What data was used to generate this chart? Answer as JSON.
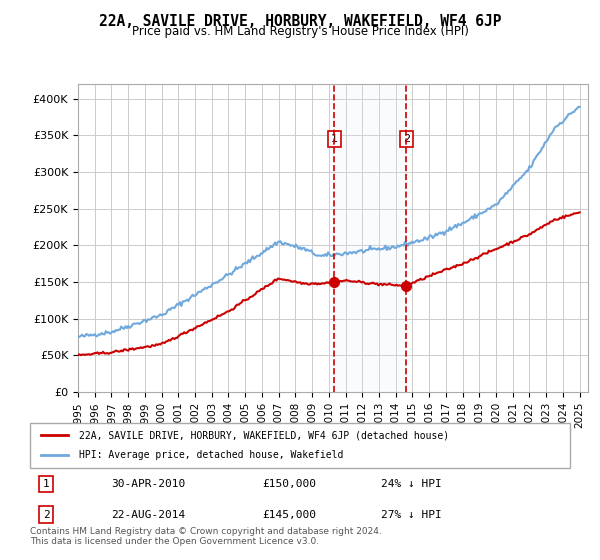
{
  "title": "22A, SAVILE DRIVE, HORBURY, WAKEFIELD, WF4 6JP",
  "subtitle": "Price paid vs. HM Land Registry's House Price Index (HPI)",
  "ylabel_ticks": [
    "£0",
    "£50K",
    "£100K",
    "£150K",
    "£200K",
    "£250K",
    "£300K",
    "£350K",
    "£400K"
  ],
  "ytick_values": [
    0,
    50000,
    100000,
    150000,
    200000,
    250000,
    300000,
    350000,
    400000
  ],
  "ylim": [
    0,
    420000
  ],
  "xlim_start": 1995.0,
  "xlim_end": 2025.5,
  "hpi_color": "#6fa8dc",
  "price_color": "#cc0000",
  "bg_color": "#ffffff",
  "grid_color": "#cccccc",
  "marker1_x": 2010.33,
  "marker2_x": 2014.64,
  "marker1_y": 150000,
  "marker2_y": 145000,
  "shade_color": "#dce9f7",
  "legend_label1": "22A, SAVILE DRIVE, HORBURY, WAKEFIELD, WF4 6JP (detached house)",
  "legend_label2": "HPI: Average price, detached house, Wakefield",
  "annotation1_num": "1",
  "annotation2_num": "2",
  "table_row1": [
    "1",
    "30-APR-2010",
    "£150,000",
    "24% ↓ HPI"
  ],
  "table_row2": [
    "2",
    "22-AUG-2014",
    "£145,000",
    "27% ↓ HPI"
  ],
  "footnote": "Contains HM Land Registry data © Crown copyright and database right 2024.\nThis data is licensed under the Open Government Licence v3.0.",
  "xtick_years": [
    1995,
    1996,
    1997,
    1998,
    1999,
    2000,
    2001,
    2002,
    2003,
    2004,
    2005,
    2006,
    2007,
    2008,
    2009,
    2010,
    2011,
    2012,
    2013,
    2014,
    2015,
    2016,
    2017,
    2018,
    2019,
    2020,
    2021,
    2022,
    2023,
    2024,
    2025
  ]
}
